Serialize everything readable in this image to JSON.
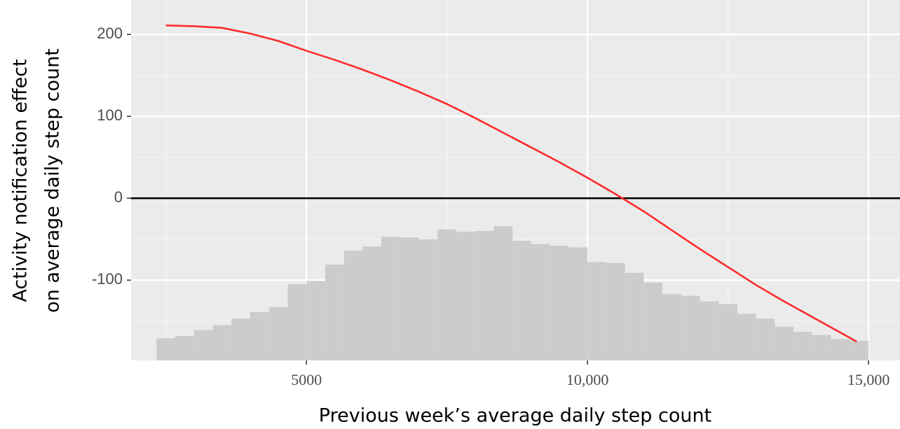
{
  "chart_data": {
    "type": "line",
    "xlabel": "Previous week’s average daily step count",
    "ylabel": [
      "Activity notification effect",
      "on average daily step count"
    ],
    "xlim": [
      1880,
      15560
    ],
    "ylim": [
      -198,
      242
    ],
    "xticks": [
      5000,
      {
        "value": 10000,
        "label": "10,000"
      },
      {
        "value": 15000,
        "label": "15,000"
      }
    ],
    "yticks": [
      -100,
      0,
      100,
      200
    ],
    "grid": true,
    "minor_grid": true,
    "reference_line": 0,
    "x": [
      2500,
      3000,
      3500,
      4000,
      4500,
      5000,
      5500,
      6000,
      6500,
      7000,
      7500,
      8000,
      8500,
      9000,
      9500,
      10000,
      10500,
      11000,
      11500,
      12000,
      12500,
      13000,
      13500,
      14000,
      14500,
      14790
    ],
    "series": [
      {
        "color": "#ff2a2a",
        "values": [
          211,
          210,
          208,
          201,
          192,
          180,
          169,
          157,
          144,
          130,
          115,
          98,
          80,
          62,
          44,
          25,
          5,
          -16,
          -39,
          -62,
          -84,
          -106,
          -126,
          -145,
          -164,
          -175
        ]
      }
    ],
    "histogram": {
      "color": "#cccccc",
      "bins": [
        2333,
        2667,
        3000,
        3333,
        3667,
        4000,
        4333,
        4667,
        5000,
        5333,
        5667,
        6000,
        6333,
        6667,
        7000,
        7333,
        7667,
        8000,
        8333,
        8667,
        9000,
        9333,
        9667,
        10000,
        10333,
        10667,
        11000,
        11333,
        11667,
        12000,
        12333,
        12667,
        13000,
        13333,
        13667,
        14000,
        14333,
        14667,
        15000
      ],
      "values": [
        -171,
        -168,
        -161,
        -155,
        -147,
        -139,
        -133,
        -105,
        -101,
        -81,
        -64,
        -59,
        -47,
        -48,
        -50,
        -38,
        -41,
        -40,
        -34,
        -52,
        -56,
        -58,
        -60,
        -78,
        -79,
        -91,
        -103,
        -117,
        -119,
        -126,
        -129,
        -141,
        -147,
        -157,
        -163,
        -167,
        -172,
        -174
      ]
    }
  }
}
